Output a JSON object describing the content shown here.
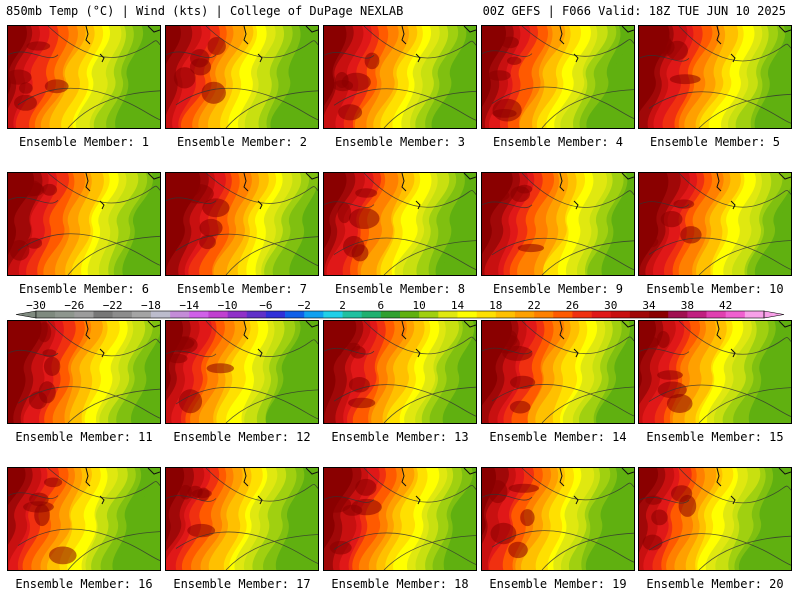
{
  "header": {
    "left": "850mb Temp (°C) | Wind (kts) | College of DuPage NEXLAB",
    "right": "00Z GEFS | F066 Valid: 18Z TUE JUN 10 2025"
  },
  "panels": [
    {
      "label": "Ensemble Member: 1"
    },
    {
      "label": "Ensemble Member: 2"
    },
    {
      "label": "Ensemble Member: 3"
    },
    {
      "label": "Ensemble Member: 4"
    },
    {
      "label": "Ensemble Member: 5"
    },
    {
      "label": "Ensemble Member: 6"
    },
    {
      "label": "Ensemble Member: 7"
    },
    {
      "label": "Ensemble Member: 8"
    },
    {
      "label": "Ensemble Member: 9"
    },
    {
      "label": "Ensemble Member: 10"
    },
    {
      "label": "Ensemble Member: 11"
    },
    {
      "label": "Ensemble Member: 12"
    },
    {
      "label": "Ensemble Member: 13"
    },
    {
      "label": "Ensemble Member: 14"
    },
    {
      "label": "Ensemble Member: 15"
    },
    {
      "label": "Ensemble Member: 16"
    },
    {
      "label": "Ensemble Member: 17"
    },
    {
      "label": "Ensemble Member: 18"
    },
    {
      "label": "Ensemble Member: 19"
    },
    {
      "label": "Ensemble Member: 20"
    }
  ],
  "colorbar": {
    "tick_labels": [
      "−30",
      "−26",
      "−22",
      "−18",
      "−14",
      "−10",
      "−6",
      "−2",
      "2",
      "6",
      "10",
      "14",
      "18",
      "22",
      "26",
      "30",
      "34",
      "38",
      "42"
    ],
    "colors": [
      "#7f8a7f",
      "#8e968e",
      "#9c9c9c",
      "#777777",
      "#8c8c8c",
      "#a4a4a4",
      "#bcbccc",
      "#c48cd8",
      "#d060e8",
      "#c040d0",
      "#9030c8",
      "#6030c8",
      "#3030d8",
      "#1060e8",
      "#10a0f0",
      "#20d0e8",
      "#20c0a0",
      "#20b070",
      "#30a030",
      "#60b010",
      "#a0d010",
      "#e0e810",
      "#ffff00",
      "#ffe000",
      "#ffc000",
      "#ffa000",
      "#ff8000",
      "#ff5a00",
      "#f03010",
      "#e01818",
      "#c81010",
      "#a00808",
      "#8a0000",
      "#a01050",
      "#c02080",
      "#e040b0",
      "#f060d0",
      "#f8a0e8"
    ]
  }
}
